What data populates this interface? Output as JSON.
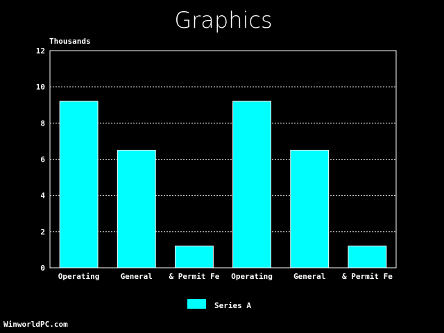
{
  "chart_data": {
    "type": "bar",
    "title": "Graphics",
    "ylabel": "Thousands",
    "xlabel": "",
    "categories": [
      "Operating",
      "General",
      "& Permit Fe",
      "Operating",
      "General",
      "& Permit Fe"
    ],
    "series": [
      {
        "name": "Series A",
        "values": [
          9.2,
          6.5,
          1.2,
          9.2,
          6.5,
          1.2
        ]
      }
    ],
    "ylim": [
      0,
      12
    ],
    "yticks": [
      0,
      2,
      4,
      6,
      8,
      10,
      12
    ],
    "grid": true,
    "legend": "bottom-center",
    "colors": {
      "background": "#000000",
      "bar": "#00ffff",
      "bar_outline": "#ffffff",
      "axis": "#ffffff",
      "grid": "#ffffff",
      "text": "#ffffff"
    }
  },
  "footer": {
    "text": "WinworldPC.com"
  }
}
